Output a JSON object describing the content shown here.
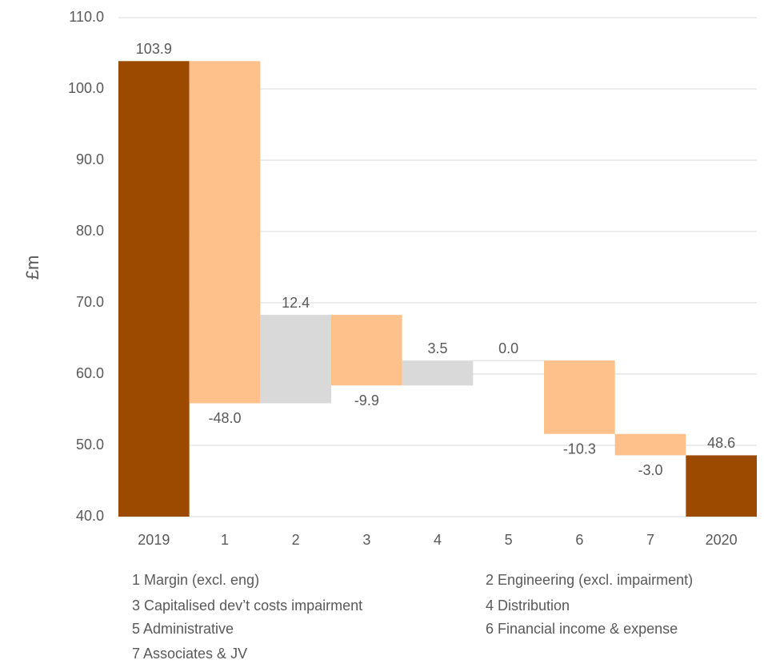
{
  "chart_data": {
    "type": "waterfall",
    "y_label": "£m",
    "categories": [
      "2019",
      "1",
      "2",
      "3",
      "4",
      "5",
      "6",
      "7",
      "2020"
    ],
    "measures": [
      "total",
      "relative",
      "relative",
      "relative",
      "relative",
      "relative",
      "relative",
      "relative",
      "total"
    ],
    "values": [
      103.9,
      -48.0,
      12.4,
      -9.9,
      3.5,
      0.0,
      -10.3,
      -3.0,
      48.6
    ],
    "value_labels": [
      "103.9",
      "-48.0",
      "12.4",
      "-9.9",
      "3.5",
      "0.0",
      "-10.3",
      "-3.0",
      "48.6"
    ],
    "colors": {
      "total": "#9c4a00",
      "increase": "#d9d9d9",
      "decrease": "#ffc18b"
    },
    "ylim": [
      40,
      110
    ],
    "yticks": [
      {
        "value": 40,
        "label": "40.0"
      },
      {
        "value": 50,
        "label": "50.0"
      },
      {
        "value": 60,
        "label": "60.0"
      },
      {
        "value": 70,
        "label": "70.0"
      },
      {
        "value": 80,
        "label": "80.0"
      },
      {
        "value": 90,
        "label": "90.0"
      },
      {
        "value": 100,
        "label": "100.0"
      },
      {
        "value": 110,
        "label": "110.0"
      }
    ],
    "grid": true,
    "notes": [
      "1 Margin (excl. eng)",
      "2 Engineering (excl. impairment)",
      "3 Capitalised dev’t costs impairment",
      "4 Distribution",
      "5 Administrative",
      "6 Financial income & expense",
      "7 Associates & JV"
    ]
  }
}
